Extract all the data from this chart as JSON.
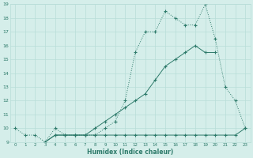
{
  "xlabel": "Humidex (Indice chaleur)",
  "x_values": [
    0,
    1,
    2,
    3,
    4,
    5,
    6,
    7,
    8,
    9,
    10,
    11,
    12,
    13,
    14,
    15,
    16,
    17,
    18,
    19,
    20,
    21,
    22,
    23
  ],
  "line1": [
    10.0,
    9.5,
    9.5,
    9.0,
    10.0,
    9.5,
    9.5,
    9.5,
    9.5,
    10.0,
    10.5,
    12.0,
    15.5,
    17.0,
    17.0,
    18.5,
    18.0,
    17.5,
    17.5,
    19.0,
    16.5,
    13.0,
    12.0,
    10.0
  ],
  "line2": [
    null,
    null,
    null,
    9.0,
    9.5,
    9.5,
    9.5,
    9.5,
    9.5,
    9.5,
    9.5,
    9.5,
    9.5,
    9.5,
    9.5,
    9.5,
    9.5,
    9.5,
    9.5,
    9.5,
    9.5,
    9.5,
    9.5,
    10.0
  ],
  "line3": [
    null,
    null,
    null,
    9.0,
    9.5,
    9.5,
    9.5,
    9.5,
    10.0,
    10.5,
    11.0,
    11.5,
    12.0,
    12.5,
    13.5,
    14.5,
    15.0,
    15.5,
    16.0,
    15.5,
    15.5,
    null,
    null,
    null
  ],
  "line_color": "#2d7a6a",
  "bg_color": "#d5eeea",
  "grid_color": "#b8ddd8",
  "ylim": [
    9,
    19
  ],
  "xlim": [
    -0.5,
    23.5
  ],
  "yticks": [
    9,
    10,
    11,
    12,
    13,
    14,
    15,
    16,
    17,
    18,
    19
  ],
  "xticks": [
    0,
    1,
    2,
    3,
    4,
    5,
    6,
    7,
    8,
    9,
    10,
    11,
    12,
    13,
    14,
    15,
    16,
    17,
    18,
    19,
    20,
    21,
    22,
    23
  ]
}
